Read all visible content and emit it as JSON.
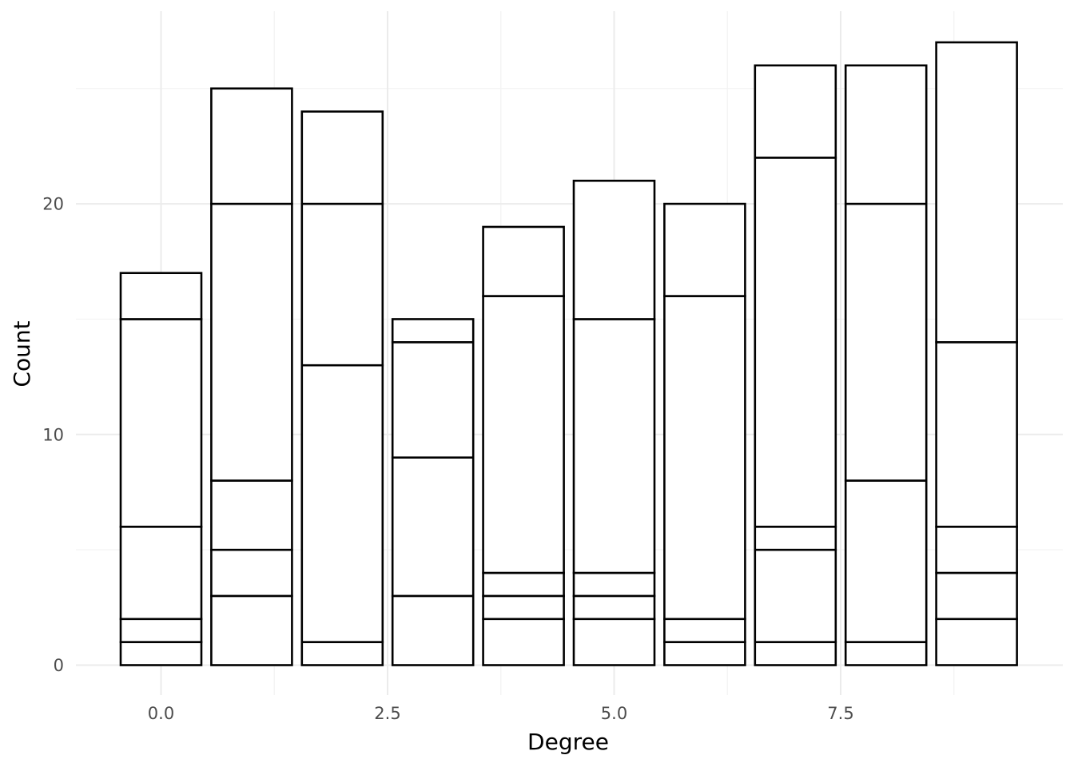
{
  "chart_data": {
    "type": "bar",
    "stacked": true,
    "xlabel": "Degree",
    "ylabel": "Count",
    "x": [
      0,
      1,
      2,
      3,
      4,
      5,
      6,
      7,
      8,
      9
    ],
    "totals": [
      17,
      25,
      24,
      15,
      19,
      21,
      20,
      26,
      26,
      27
    ],
    "stack_boundaries": [
      [
        1,
        2,
        6,
        15,
        17
      ],
      [
        3,
        5,
        8,
        20,
        25
      ],
      [
        1,
        13,
        20,
        24
      ],
      [
        3,
        9,
        14,
        15
      ],
      [
        2,
        3,
        4,
        16,
        19
      ],
      [
        2,
        3,
        4,
        15,
        21
      ],
      [
        1,
        2,
        16,
        20
      ],
      [
        1,
        5,
        6,
        22,
        26
      ],
      [
        1,
        8,
        20,
        26
      ],
      [
        2,
        4,
        6,
        14,
        27
      ]
    ],
    "xlim": [
      -0.5,
      9.5
    ],
    "ylim": [
      0,
      27
    ],
    "x_ticks": [
      "0.0",
      "2.5",
      "5.0",
      "7.5"
    ],
    "x_tick_values": [
      0,
      2.5,
      5,
      7.5
    ],
    "y_ticks": [
      "0",
      "10",
      "20"
    ],
    "y_tick_values": [
      0,
      10,
      20
    ],
    "bar_fill": "#ffffff",
    "bar_outline": "#000000",
    "grid": true,
    "legend": "none"
  }
}
